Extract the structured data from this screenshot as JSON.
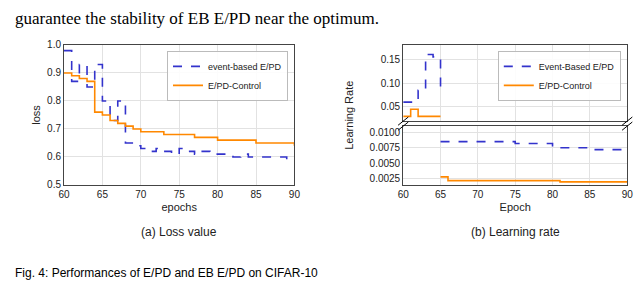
{
  "chart_data": [
    {
      "type": "step",
      "title": "(a) Loss value",
      "x_label": "epochs",
      "y_label": "loss",
      "xlim": [
        60,
        90
      ],
      "ylim": [
        0.5,
        1.0
      ],
      "xticks": [
        60,
        65,
        70,
        75,
        80,
        85,
        90
      ],
      "yticks": [
        0.5,
        0.6,
        0.7,
        0.8,
        0.9,
        {
          "value": 1.0,
          "label": "1.0"
        }
      ],
      "grid": true,
      "legend": "upper right",
      "annotations": [
        "guarantee the stability of EB E/PD near the optimum.",
        "Fig. 4: Performances of E/PD and EB E/PD on CIFAR-10"
      ],
      "series": [
        {
          "name": "event-based E/PD",
          "color": "#3333cc",
          "line_style": "dashed",
          "x": [
            60,
            61,
            62,
            63,
            64,
            65,
            66,
            67,
            68,
            69,
            70,
            71,
            72,
            73,
            74,
            75,
            76,
            77,
            78,
            79,
            80,
            81,
            82,
            83,
            84,
            85,
            86,
            87,
            88,
            89,
            90
          ],
          "values": [
            0.98,
            0.87,
            0.93,
            0.85,
            0.93,
            0.8,
            0.73,
            0.8,
            0.65,
            0.64,
            0.63,
            0.62,
            0.63,
            0.62,
            0.61,
            0.63,
            0.62,
            0.61,
            0.62,
            0.61,
            0.61,
            0.61,
            0.6,
            0.61,
            0.6,
            0.6,
            0.6,
            0.6,
            0.6,
            0.59,
            0.59
          ]
        },
        {
          "name": "E/PD-Control",
          "color": "#ff8800",
          "line_style": "solid",
          "x": [
            60,
            61,
            62,
            63,
            64,
            65,
            66,
            67,
            68,
            69,
            70,
            71,
            72,
            73,
            74,
            75,
            76,
            77,
            78,
            79,
            80,
            81,
            82,
            83,
            84,
            85,
            86,
            87,
            88,
            89,
            90
          ],
          "values": [
            0.9,
            0.89,
            0.88,
            0.87,
            0.76,
            0.75,
            0.73,
            0.72,
            0.71,
            0.7,
            0.69,
            0.69,
            0.69,
            0.68,
            0.68,
            0.68,
            0.68,
            0.67,
            0.67,
            0.67,
            0.66,
            0.66,
            0.66,
            0.66,
            0.66,
            0.65,
            0.65,
            0.65,
            0.65,
            0.65,
            0.64
          ]
        }
      ]
    },
    {
      "type": "step",
      "title": "(b) Learning rate",
      "y_label": "Learning Rate",
      "xlim": [
        60,
        90
      ],
      "ylim": [
        0.02,
        0.18
      ],
      "xticks": [
        60,
        65,
        70,
        75,
        80,
        85,
        90
      ],
      "yticks": [
        0.05,
        {
          "value": 0.1,
          "label": "0.10"
        },
        0.15
      ],
      "tick_labels": "y",
      "grid": true,
      "legend": "upper right",
      "series": [
        {
          "name": "Event-Based E/PD",
          "color": "#3333cc",
          "line_style": "dashed",
          "x": [
            60,
            61,
            62,
            63,
            64,
            65
          ],
          "values": [
            0.06,
            0.06,
            0.085,
            0.16,
            0.155,
            0.085
          ]
        },
        {
          "name": "E/PD-Control",
          "color": "#ff8800",
          "line_style": "solid",
          "x": [
            60,
            61,
            62,
            65
          ],
          "values": [
            0.03,
            0.045,
            0.03,
            0.03
          ]
        }
      ]
    },
    {
      "type": "step",
      "x_label": "Epoch",
      "xlim": [
        60,
        90
      ],
      "ylim": [
        0.0015,
        0.011
      ],
      "xticks": [
        60,
        65,
        70,
        75,
        80,
        85,
        90
      ],
      "yticks": [
        0.0025,
        {
          "value": 0.005,
          "label": "0.0050"
        },
        0.0075,
        {
          "value": 0.01,
          "label": "0.0100"
        }
      ],
      "grid": true,
      "series": [
        {
          "color": "#3333cc",
          "line_style": "dashed",
          "x": [
            65,
            70,
            75,
            80,
            85,
            90
          ],
          "values": [
            0.0085,
            0.0085,
            0.0082,
            0.0075,
            0.0072,
            0.007
          ]
        },
        {
          "color": "#ff8800",
          "line_style": "solid",
          "x": [
            65,
            66,
            80,
            81,
            90
          ],
          "values": [
            0.0028,
            0.0022,
            0.0022,
            0.002,
            0.002
          ]
        }
      ]
    }
  ]
}
